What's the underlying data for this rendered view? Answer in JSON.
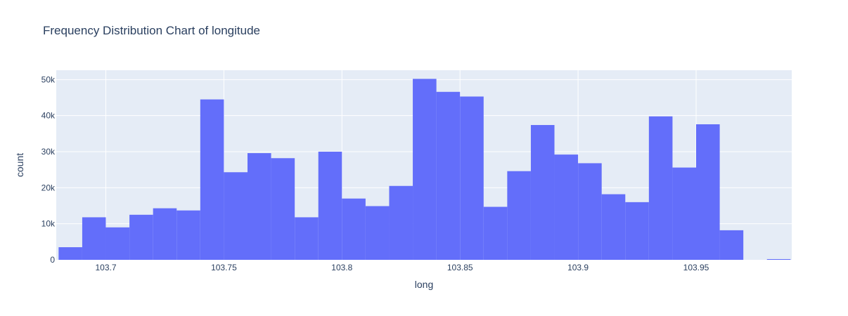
{
  "chart_data": {
    "type": "bar",
    "title": "Frequency Distribution Chart of longitude",
    "xlabel": "long",
    "ylabel": "count",
    "xlim": [
      103.679,
      103.9905
    ],
    "ylim": [
      0,
      52600
    ],
    "bin_width": 0.01,
    "x_ticks": [
      103.7,
      103.75,
      103.8,
      103.85,
      103.9,
      103.95
    ],
    "x_tick_labels": [
      "103.7",
      "103.75",
      "103.8",
      "103.85",
      "103.9",
      "103.95"
    ],
    "y_ticks": [
      0,
      10000,
      20000,
      30000,
      40000,
      50000
    ],
    "y_tick_labels": [
      "0",
      "10k",
      "20k",
      "30k",
      "40k",
      "50k"
    ],
    "grid": true,
    "bar_color": "#636efa",
    "plot_bg": "#e5ecf6",
    "bins": [
      {
        "x0": 103.68,
        "x1": 103.69,
        "count": 3500
      },
      {
        "x0": 103.69,
        "x1": 103.7,
        "count": 11800
      },
      {
        "x0": 103.7,
        "x1": 103.71,
        "count": 9000
      },
      {
        "x0": 103.71,
        "x1": 103.72,
        "count": 12500
      },
      {
        "x0": 103.72,
        "x1": 103.73,
        "count": 14300
      },
      {
        "x0": 103.73,
        "x1": 103.74,
        "count": 13700
      },
      {
        "x0": 103.74,
        "x1": 103.75,
        "count": 44500
      },
      {
        "x0": 103.75,
        "x1": 103.76,
        "count": 24300
      },
      {
        "x0": 103.76,
        "x1": 103.77,
        "count": 29600
      },
      {
        "x0": 103.77,
        "x1": 103.78,
        "count": 28200
      },
      {
        "x0": 103.78,
        "x1": 103.79,
        "count": 11800
      },
      {
        "x0": 103.79,
        "x1": 103.8,
        "count": 30000
      },
      {
        "x0": 103.8,
        "x1": 103.81,
        "count": 17000
      },
      {
        "x0": 103.81,
        "x1": 103.82,
        "count": 14900
      },
      {
        "x0": 103.82,
        "x1": 103.83,
        "count": 20500
      },
      {
        "x0": 103.83,
        "x1": 103.84,
        "count": 50200
      },
      {
        "x0": 103.84,
        "x1": 103.85,
        "count": 46600
      },
      {
        "x0": 103.85,
        "x1": 103.86,
        "count": 45300
      },
      {
        "x0": 103.86,
        "x1": 103.87,
        "count": 14700
      },
      {
        "x0": 103.87,
        "x1": 103.88,
        "count": 24600
      },
      {
        "x0": 103.88,
        "x1": 103.89,
        "count": 37400
      },
      {
        "x0": 103.89,
        "x1": 103.9,
        "count": 29200
      },
      {
        "x0": 103.9,
        "x1": 103.91,
        "count": 26800
      },
      {
        "x0": 103.91,
        "x1": 103.92,
        "count": 18200
      },
      {
        "x0": 103.92,
        "x1": 103.93,
        "count": 16000
      },
      {
        "x0": 103.93,
        "x1": 103.94,
        "count": 39800
      },
      {
        "x0": 103.94,
        "x1": 103.95,
        "count": 25600
      },
      {
        "x0": 103.95,
        "x1": 103.96,
        "count": 37600
      },
      {
        "x0": 103.96,
        "x1": 103.97,
        "count": 8200
      },
      {
        "x0": 103.97,
        "x1": 103.98,
        "count": 0
      },
      {
        "x0": 103.98,
        "x1": 103.99,
        "count": 200
      }
    ]
  }
}
